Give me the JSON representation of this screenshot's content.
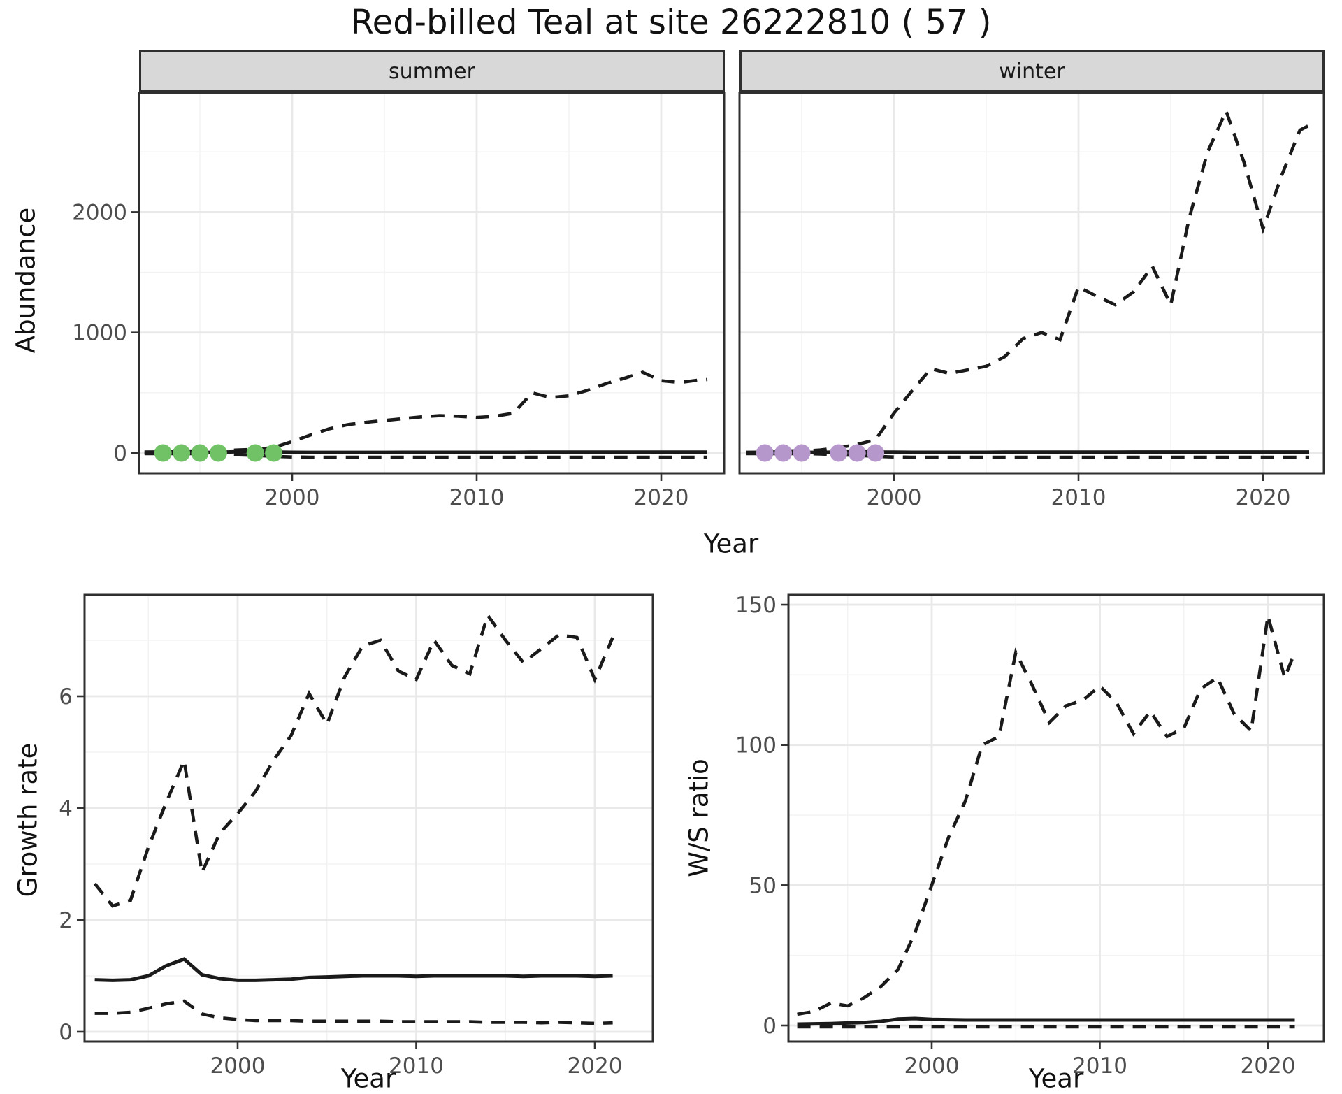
{
  "title": "Red-billed Teal at site 26222810 ( 57 )",
  "colors": {
    "line": "#1a1a1a",
    "grid_major": "#e9e9e9",
    "grid_minor": "#f3f3f3",
    "panel_border": "#2f2f2f",
    "strip_fill": "#d8d8d8",
    "tick_label": "#4d4d4d",
    "summer_points": "#71c166",
    "winter_points": "#b697cb"
  },
  "chart_data": [
    {
      "id": "abundance-summer",
      "type": "line",
      "facet": "summer",
      "xlabel": "Year",
      "ylabel": "Abundance",
      "x_ticks": [
        2000,
        2010,
        2020
      ],
      "x_minor": [
        1995,
        2005,
        2015
      ],
      "y_ticks": [
        0,
        1000,
        2000
      ],
      "y_minor": [
        500,
        1500,
        2500
      ],
      "xlim": [
        1991.7,
        2023.4
      ],
      "ylim": [
        -170,
        2990
      ],
      "show_y_tick_labels": true,
      "grid": true,
      "legend": "none",
      "series": [
        {
          "name": "upper-ci",
          "style": "dashed",
          "x": [
            1992,
            1993,
            1994,
            1995,
            1996,
            1997,
            1998,
            1999,
            2000,
            2001,
            2002,
            2003,
            2004,
            2005,
            2006,
            2007,
            2008,
            2009,
            2010,
            2011,
            2012,
            2013,
            2014,
            2015,
            2016,
            2017,
            2018,
            2019,
            2020,
            2021,
            2022,
            2022.5
          ],
          "y": [
            8,
            10,
            10,
            12,
            15,
            25,
            30,
            45,
            95,
            150,
            200,
            235,
            255,
            270,
            285,
            300,
            310,
            305,
            295,
            305,
            330,
            500,
            460,
            475,
            520,
            575,
            620,
            670,
            600,
            585,
            605,
            610
          ]
        },
        {
          "name": "fit",
          "style": "solid",
          "x": [
            1992,
            1993,
            1994,
            1995,
            1996,
            1997,
            1998,
            1999,
            2000,
            2001,
            2002,
            2003,
            2004,
            2005,
            2006,
            2007,
            2008,
            2009,
            2010,
            2011,
            2012,
            2013,
            2014,
            2015,
            2016,
            2017,
            2018,
            2019,
            2020,
            2021,
            2022,
            2022.5
          ],
          "y": [
            4,
            4,
            4,
            5,
            6,
            10,
            12,
            8,
            6,
            5,
            5,
            5,
            5,
            5,
            6,
            6,
            6,
            6,
            6,
            6,
            6,
            7,
            7,
            7,
            7,
            7,
            7,
            7,
            7,
            7,
            7,
            7
          ]
        },
        {
          "name": "lower-ci",
          "style": "dashed",
          "x": [
            1992,
            1993,
            1994,
            1995,
            1996,
            1997,
            1998,
            1999,
            2000,
            2001,
            2002,
            2003,
            2004,
            2005,
            2006,
            2007,
            2008,
            2009,
            2010,
            2011,
            2012,
            2013,
            2014,
            2015,
            2016,
            2017,
            2018,
            2019,
            2020,
            2021,
            2022,
            2022.5
          ],
          "y": [
            -5,
            -5,
            -5,
            -6,
            -8,
            -15,
            -20,
            -28,
            -33,
            -35,
            -35,
            -35,
            -35,
            -35,
            -35,
            -35,
            -35,
            -35,
            -35,
            -35,
            -35,
            -35,
            -35,
            -35,
            -35,
            -35,
            -35,
            -35,
            -35,
            -35,
            -35,
            -35
          ]
        }
      ],
      "points": {
        "name": "observed-counts",
        "color_key": "summer_points",
        "x": [
          1993,
          1994,
          1995,
          1996,
          1998,
          1999
        ],
        "y": [
          0,
          0,
          0,
          0,
          0,
          0
        ]
      }
    },
    {
      "id": "abundance-winter",
      "type": "line",
      "facet": "winter",
      "xlabel": "Year",
      "ylabel": "Abundance",
      "x_ticks": [
        2000,
        2010,
        2020
      ],
      "x_minor": [
        1995,
        2005,
        2015
      ],
      "y_ticks": [
        0,
        1000,
        2000
      ],
      "y_minor": [
        500,
        1500,
        2500
      ],
      "xlim": [
        1991.6,
        2023.3
      ],
      "ylim": [
        -170,
        2990
      ],
      "show_y_tick_labels": false,
      "grid": true,
      "legend": "none",
      "series": [
        {
          "name": "upper-ci",
          "style": "dashed",
          "x": [
            1992,
            1993,
            1994,
            1995,
            1996,
            1997,
            1998,
            1999,
            2000,
            2001,
            2002,
            2003,
            2004,
            2005,
            2006,
            2007,
            2008,
            2009,
            2010,
            2011,
            2012,
            2013,
            2014,
            2015,
            2016,
            2017,
            2018,
            2019,
            2020,
            2021,
            2022,
            2022.5
          ],
          "y": [
            5,
            8,
            10,
            15,
            25,
            45,
            70,
            110,
            330,
            520,
            700,
            660,
            690,
            720,
            800,
            950,
            1000,
            940,
            1380,
            1300,
            1230,
            1340,
            1550,
            1230,
            1950,
            2500,
            2840,
            2400,
            1860,
            2300,
            2680,
            2720
          ]
        },
        {
          "name": "fit",
          "style": "solid",
          "x": [
            1992,
            1993,
            1994,
            1995,
            1996,
            1997,
            1998,
            1999,
            2000,
            2001,
            2002,
            2003,
            2004,
            2005,
            2006,
            2007,
            2008,
            2009,
            2010,
            2011,
            2012,
            2013,
            2014,
            2015,
            2016,
            2017,
            2018,
            2019,
            2020,
            2021,
            2022,
            2022.5
          ],
          "y": [
            4,
            4,
            4,
            5,
            5,
            8,
            10,
            8,
            7,
            6,
            6,
            6,
            6,
            6,
            7,
            7,
            7,
            7,
            7,
            7,
            7,
            8,
            8,
            8,
            8,
            8,
            8,
            8,
            8,
            8,
            8,
            8
          ]
        },
        {
          "name": "lower-ci",
          "style": "dashed",
          "x": [
            1992,
            1993,
            1994,
            1995,
            1996,
            1997,
            1998,
            1999,
            2000,
            2001,
            2002,
            2003,
            2004,
            2005,
            2006,
            2007,
            2008,
            2009,
            2010,
            2011,
            2012,
            2013,
            2014,
            2015,
            2016,
            2017,
            2018,
            2019,
            2020,
            2021,
            2022,
            2022.5
          ],
          "y": [
            -5,
            -5,
            -5,
            -6,
            -8,
            -15,
            -20,
            -28,
            -33,
            -35,
            -35,
            -35,
            -35,
            -35,
            -35,
            -35,
            -35,
            -35,
            -35,
            -35,
            -35,
            -35,
            -35,
            -35,
            -35,
            -35,
            -35,
            -35,
            -35,
            -35,
            -35,
            -35
          ]
        }
      ],
      "points": {
        "name": "observed-counts",
        "color_key": "winter_points",
        "x": [
          1993,
          1994,
          1995,
          1997,
          1998,
          1999
        ],
        "y": [
          0,
          0,
          0,
          0,
          0,
          0
        ]
      }
    },
    {
      "id": "growth-rate",
      "type": "line",
      "facet": null,
      "xlabel": "Year",
      "ylabel": "Growth rate",
      "x_ticks": [
        2000,
        2010,
        2020
      ],
      "x_minor": [
        1995,
        2005,
        2015
      ],
      "y_ticks": [
        0,
        2,
        4,
        6
      ],
      "y_minor": [
        1,
        3,
        5,
        7
      ],
      "xlim": [
        1991.4,
        2023.2
      ],
      "ylim": [
        -0.18,
        7.82
      ],
      "show_y_tick_labels": true,
      "grid": true,
      "legend": "none",
      "series": [
        {
          "name": "upper-ci",
          "style": "dashed",
          "x": [
            1992,
            1993,
            1994,
            1995,
            1996,
            1997,
            1998,
            1999,
            2000,
            2001,
            2002,
            2003,
            2004,
            2005,
            2006,
            2007,
            2008,
            2009,
            2010,
            2011,
            2012,
            2013,
            2014,
            2015,
            2016,
            2017,
            2018,
            2019,
            2020,
            2021
          ],
          "y": [
            2.65,
            2.25,
            2.35,
            3.3,
            4.1,
            4.85,
            2.85,
            3.55,
            3.9,
            4.3,
            4.85,
            5.3,
            6.05,
            5.5,
            6.35,
            6.9,
            7.0,
            6.45,
            6.3,
            7.0,
            6.55,
            6.4,
            7.45,
            7.0,
            6.6,
            6.85,
            7.1,
            7.05,
            6.3,
            7.05
          ]
        },
        {
          "name": "fit",
          "style": "solid",
          "x": [
            1992,
            1993,
            1994,
            1995,
            1996,
            1997,
            1998,
            1999,
            2000,
            2001,
            2002,
            2003,
            2004,
            2005,
            2006,
            2007,
            2008,
            2009,
            2010,
            2011,
            2012,
            2013,
            2014,
            2015,
            2016,
            2017,
            2018,
            2019,
            2020,
            2021
          ],
          "y": [
            0.93,
            0.92,
            0.93,
            1.0,
            1.18,
            1.3,
            1.02,
            0.95,
            0.92,
            0.92,
            0.93,
            0.94,
            0.97,
            0.98,
            0.99,
            1.0,
            1.0,
            1.0,
            0.99,
            1.0,
            1.0,
            1.0,
            1.0,
            1.0,
            0.99,
            1.0,
            1.0,
            1.0,
            0.99,
            1.0
          ]
        },
        {
          "name": "lower-ci",
          "style": "dashed",
          "x": [
            1992,
            1993,
            1994,
            1995,
            1996,
            1997,
            1998,
            1999,
            2000,
            2001,
            2002,
            2003,
            2004,
            2005,
            2006,
            2007,
            2008,
            2009,
            2010,
            2011,
            2012,
            2013,
            2014,
            2015,
            2016,
            2017,
            2018,
            2019,
            2020,
            2021
          ],
          "y": [
            0.33,
            0.33,
            0.35,
            0.42,
            0.5,
            0.55,
            0.32,
            0.25,
            0.22,
            0.2,
            0.2,
            0.2,
            0.19,
            0.19,
            0.19,
            0.19,
            0.19,
            0.18,
            0.18,
            0.18,
            0.18,
            0.18,
            0.17,
            0.17,
            0.17,
            0.16,
            0.17,
            0.16,
            0.15,
            0.16
          ]
        }
      ],
      "points": null
    },
    {
      "id": "ws-ratio",
      "type": "line",
      "facet": null,
      "xlabel": "Year",
      "ylabel": "W/S ratio",
      "x_ticks": [
        2000,
        2010,
        2020
      ],
      "x_minor": [
        1995,
        2005,
        2015
      ],
      "y_ticks": [
        0,
        50,
        100,
        150
      ],
      "y_minor": [
        25,
        75,
        125
      ],
      "xlim": [
        1991.5,
        2023.3
      ],
      "ylim": [
        -6,
        154
      ],
      "show_y_tick_labels": true,
      "grid": true,
      "legend": "none",
      "series": [
        {
          "name": "upper-ci",
          "style": "dashed",
          "x": [
            1992,
            1993,
            1994,
            1995,
            1996,
            1997,
            1998,
            1999,
            2000,
            2001,
            2002,
            2003,
            2004,
            2005,
            2006,
            2007,
            2008,
            2009,
            2010,
            2011,
            2012,
            2013,
            2014,
            2015,
            2016,
            2017,
            2018,
            2019,
            2020,
            2021,
            2021.6
          ],
          "y": [
            4,
            5,
            8,
            7,
            10,
            14,
            20,
            33,
            50,
            67,
            80,
            100,
            103,
            133,
            121,
            108,
            114,
            116,
            121,
            115,
            104,
            112,
            103,
            106,
            120,
            124,
            111,
            105,
            146,
            124,
            133
          ]
        },
        {
          "name": "fit",
          "style": "solid",
          "x": [
            1992,
            1993,
            1994,
            1995,
            1996,
            1997,
            1998,
            1999,
            2000,
            2001,
            2002,
            2003,
            2004,
            2005,
            2006,
            2007,
            2008,
            2009,
            2010,
            2011,
            2012,
            2013,
            2014,
            2015,
            2016,
            2017,
            2018,
            2019,
            2020,
            2021,
            2021.6
          ],
          "y": [
            0.5,
            0.6,
            0.7,
            0.9,
            1.1,
            1.5,
            2.3,
            2.5,
            2.2,
            2.1,
            2,
            2,
            2,
            2,
            2,
            2,
            2,
            2,
            2,
            2,
            2,
            2,
            2,
            2,
            2,
            2,
            2,
            2,
            2,
            2,
            2
          ]
        },
        {
          "name": "lower-ci",
          "style": "dashed",
          "x": [
            1992,
            1993,
            1994,
            1995,
            1996,
            1997,
            1998,
            1999,
            2000,
            2001,
            2002,
            2003,
            2004,
            2005,
            2006,
            2007,
            2008,
            2009,
            2010,
            2011,
            2012,
            2013,
            2014,
            2015,
            2016,
            2017,
            2018,
            2019,
            2020,
            2021,
            2021.6
          ],
          "y": [
            -0.5,
            -0.5,
            -0.5,
            -0.5,
            -0.5,
            -0.5,
            -0.5,
            -0.5,
            -0.5,
            -0.5,
            -0.5,
            -0.5,
            -0.5,
            -0.5,
            -0.5,
            -0.5,
            -0.5,
            -0.5,
            -0.5,
            -0.5,
            -0.5,
            -0.5,
            -0.5,
            -0.5,
            -0.5,
            -0.5,
            -0.5,
            -0.5,
            -0.5,
            -0.5,
            -0.5
          ]
        }
      ],
      "points": null
    }
  ]
}
